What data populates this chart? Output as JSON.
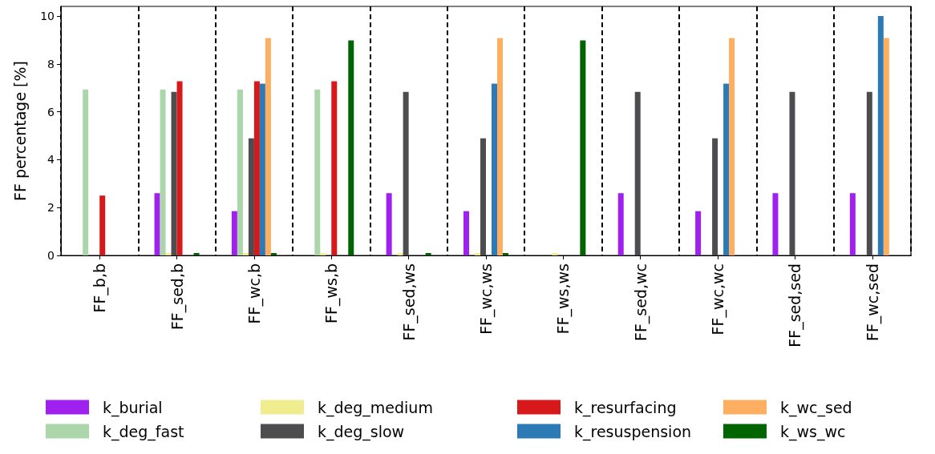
{
  "chart_data": {
    "type": "bar",
    "ylabel": "FF percentage [%]",
    "categories": [
      "FF_b,b",
      "FF_sed,b",
      "FF_wc,b",
      "FF_ws,b",
      "FF_sed,ws",
      "FF_wc,ws",
      "FF_ws,ws",
      "FF_sed,wc",
      "FF_wc,wc",
      "FF_sed,sed",
      "FF_wc,sed"
    ],
    "series": [
      {
        "name": "k_burial",
        "color": "#a020f0",
        "values": [
          0,
          2.6,
          1.85,
          0,
          2.6,
          1.85,
          0,
          2.6,
          1.85,
          2.6,
          2.6
        ]
      },
      {
        "name": "k_deg_fast",
        "color": "#abd6a9",
        "values": [
          6.93,
          6.93,
          6.93,
          6.93,
          0,
          0,
          0,
          0,
          0,
          0,
          0
        ]
      },
      {
        "name": "k_deg_medium",
        "color": "#f0ed8e",
        "values": [
          0,
          0.1,
          0.1,
          0.1,
          0.1,
          0.1,
          0.1,
          0,
          0,
          0,
          0
        ]
      },
      {
        "name": "k_deg_slow",
        "color": "#4d4d4f",
        "values": [
          0,
          6.83,
          4.89,
          0,
          6.83,
          4.89,
          0,
          6.83,
          4.89,
          6.83,
          6.83
        ]
      },
      {
        "name": "k_resurfacing",
        "color": "#d7191c",
        "values": [
          2.5,
          7.27,
          7.27,
          7.27,
          0,
          0,
          0,
          0,
          0,
          0,
          0
        ]
      },
      {
        "name": "k_resuspension",
        "color": "#2c7bb6",
        "values": [
          0,
          0,
          7.17,
          0,
          0,
          7.17,
          0,
          0,
          7.17,
          0,
          10.0
        ]
      },
      {
        "name": "k_wc_sed",
        "color": "#fdae61",
        "values": [
          0,
          0,
          9.08,
          0,
          0,
          9.08,
          0,
          0,
          9.08,
          0,
          9.08
        ]
      },
      {
        "name": "k_ws_wc",
        "color": "#006400",
        "values": [
          0,
          0.1,
          0.1,
          8.98,
          0.1,
          0.1,
          8.98,
          0,
          0,
          0,
          0
        ]
      }
    ],
    "ylim": [
      0,
      10.4
    ],
    "yticks": [
      0,
      2,
      4,
      6,
      8,
      10
    ],
    "grid": "x",
    "legend": "bottom"
  }
}
